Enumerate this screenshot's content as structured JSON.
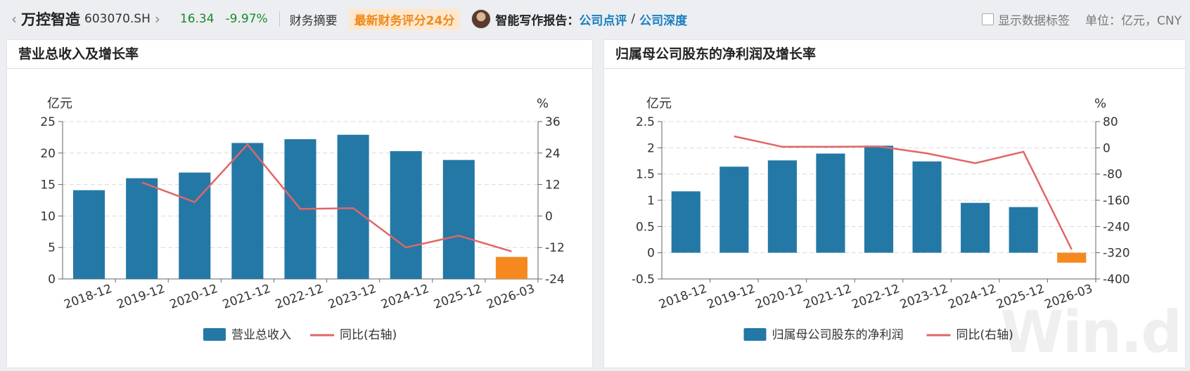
{
  "header": {
    "back_icon": "chevron-left-icon",
    "stock_name": "万控智造",
    "stock_code": "603070.SH",
    "forward_icon": "chevron-right-icon",
    "price": "16.34",
    "change": "-9.97%",
    "summary_link": "财务摘要",
    "score_badge": "最新财务评分24分",
    "ai_label": "智能写作报告：",
    "report_link_1": "公司点评",
    "slash": "/",
    "report_link_2": "公司深度",
    "show_labels": "显示数据标签",
    "unit_label": "单位：亿元，CNY",
    "up_down_color": "#1a8a2a"
  },
  "watermark": "Win.d",
  "chart_data": [
    {
      "type": "bar",
      "title": "营业总收入及增长率",
      "categories": [
        "2018-12",
        "2019-12",
        "2020-12",
        "2021-12",
        "2022-12",
        "2023-12",
        "2024-12",
        "2025-12",
        "2026-03"
      ],
      "left_unit": "亿元",
      "right_unit": "%",
      "ylim": [
        0,
        25
      ],
      "y_ticks": [
        "0",
        "5",
        "10",
        "15",
        "20",
        "25"
      ],
      "y2lim": [
        -24,
        36
      ],
      "y2_ticks": [
        "-24",
        "-12",
        "0",
        "12",
        "24",
        "36"
      ],
      "series": [
        {
          "name": "营业总收入",
          "kind": "bar",
          "axis": "left",
          "color": "#2478a5",
          "values": [
            14.1,
            16.0,
            16.9,
            21.6,
            22.2,
            22.9,
            20.3,
            18.9,
            3.5
          ]
        },
        {
          "name": "同比(右轴)",
          "kind": "line",
          "axis": "right",
          "color": "#e06666",
          "values": [
            null,
            12.8,
            5.3,
            27.3,
            2.7,
            3.0,
            -12.0,
            -7.5,
            -13.5
          ]
        }
      ],
      "highlight_color": "#f5891f",
      "highlight_index": 8,
      "legend": "bottom"
    },
    {
      "type": "bar",
      "title": "归属母公司股东的净利润及增长率",
      "categories": [
        "2018-12",
        "2019-12",
        "2020-12",
        "2021-12",
        "2022-12",
        "2023-12",
        "2024-12",
        "2025-12",
        "2026-03"
      ],
      "left_unit": "亿元",
      "right_unit": "%",
      "ylim": [
        -0.5,
        2.5
      ],
      "y_ticks": [
        "-0.5",
        "0",
        "0.5",
        "1",
        "1.5",
        "2",
        "2.5"
      ],
      "y2lim": [
        -400,
        80
      ],
      "y2_ticks": [
        "-400",
        "-320",
        "-240",
        "-160",
        "-80",
        "0",
        "80"
      ],
      "series": [
        {
          "name": "归属母公司股东的净利润",
          "kind": "bar",
          "axis": "left",
          "color": "#2478a5",
          "values": [
            1.17,
            1.64,
            1.76,
            1.89,
            2.04,
            1.74,
            0.95,
            0.87,
            -0.19
          ]
        },
        {
          "name": "同比(右轴)",
          "kind": "line",
          "axis": "right",
          "color": "#e06666",
          "values": [
            null,
            35,
            3,
            3,
            4,
            -17,
            -47,
            -12,
            -310
          ]
        }
      ],
      "highlight_color": "#f5891f",
      "highlight_index": 8,
      "legend": "bottom"
    }
  ]
}
